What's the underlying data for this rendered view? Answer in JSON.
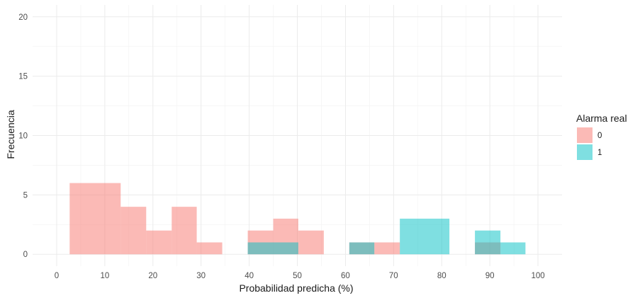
{
  "chart_data": {
    "type": "histogram",
    "title": "",
    "xlabel": "Probabilidad predicha (%)",
    "ylabel": "Frecuencia",
    "xlim": [
      -5,
      105
    ],
    "ylim": [
      -1,
      21
    ],
    "x_ticks": [
      0,
      10,
      20,
      30,
      40,
      50,
      60,
      70,
      80,
      90,
      100
    ],
    "y_ticks": [
      0,
      5,
      10,
      15,
      20
    ],
    "grid": true,
    "legend": {
      "title": "Alarma real",
      "position": "right"
    },
    "series": [
      {
        "name": "0",
        "color": "#F8766D",
        "bins": [
          {
            "x0": 2.7,
            "x1": 13.3,
            "count": 6
          },
          {
            "x0": 13.3,
            "x1": 18.6,
            "count": 4
          },
          {
            "x0": 18.6,
            "x1": 23.9,
            "count": 2
          },
          {
            "x0": 23.9,
            "x1": 29.1,
            "count": 4
          },
          {
            "x0": 29.1,
            "x1": 34.4,
            "count": 1
          },
          {
            "x0": 39.7,
            "x1": 45.0,
            "count": 2
          },
          {
            "x0": 45.0,
            "x1": 50.2,
            "count": 3
          },
          {
            "x0": 50.2,
            "x1": 55.5,
            "count": 2
          },
          {
            "x0": 60.8,
            "x1": 66.0,
            "count": 1
          },
          {
            "x0": 66.0,
            "x1": 71.3,
            "count": 1
          },
          {
            "x0": 86.9,
            "x1": 92.2,
            "count": 1
          }
        ]
      },
      {
        "name": "1",
        "color": "#00BFC4",
        "bins": [
          {
            "x0": 39.7,
            "x1": 50.2,
            "count": 1
          },
          {
            "x0": 60.8,
            "x1": 66.0,
            "count": 1
          },
          {
            "x0": 71.3,
            "x1": 81.6,
            "count": 3
          },
          {
            "x0": 86.9,
            "x1": 92.2,
            "count": 2
          },
          {
            "x0": 92.2,
            "x1": 97.4,
            "count": 1
          }
        ]
      }
    ]
  }
}
